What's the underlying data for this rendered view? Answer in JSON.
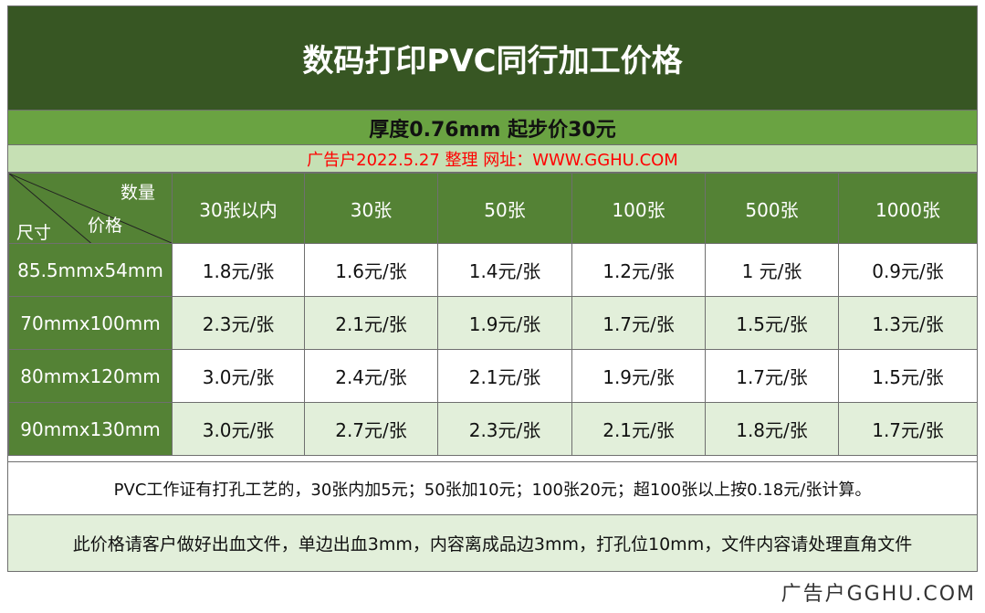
{
  "title": "数码打印PVC同行加工价格",
  "subtitle": "厚度0.76mm   起步价30元",
  "notice": "广告户2022.5.27 整理 网址：WWW.GGHU.COM",
  "corner": {
    "quantity": "数量",
    "price": "价格",
    "size": "尺寸"
  },
  "columns": [
    "30张以内",
    "30张",
    "50张",
    "100张",
    "500张",
    "1000张"
  ],
  "rows": [
    {
      "size": "85.5mmx54mm",
      "prices": [
        "1.8元/张",
        "1.6元/张",
        "1.4元/张",
        "1.2元/张",
        "1 元/张",
        "0.9元/张"
      ]
    },
    {
      "size": "70mmx100mm",
      "prices": [
        "2.3元/张",
        "2.1元/张",
        "1.9元/张",
        "1.7元/张",
        "1.5元/张",
        "1.3元/张"
      ]
    },
    {
      "size": "80mmx120mm",
      "prices": [
        "3.0元/张",
        "2.4元/张",
        "2.1元/张",
        "1.9元/张",
        "1.7元/张",
        "1.5元/张"
      ]
    },
    {
      "size": "90mmx130mm",
      "prices": [
        "3.0元/张",
        "2.7元/张",
        "2.3元/张",
        "2.1元/张",
        "1.8元/张",
        "1.7元/张"
      ]
    }
  ],
  "note1": "PVC工作证有打孔工艺的，30张内加5元；50张加10元；100张20元；超100张以上按0.18元/张计算。",
  "note2": "此价格请客户做好出血文件，单边出血3mm，内容离成品边3mm，打孔位10mm，文件内容请处理直角文件",
  "watermark": "广告户GGHU.COM",
  "colors": {
    "title_bg": "#375623",
    "header_bg": "#548235",
    "subtitle_bg": "#6aa342",
    "notice_bg": "#c6e0b4",
    "row_alt_bg": "#e2efda",
    "notice_text": "#ff0000"
  }
}
